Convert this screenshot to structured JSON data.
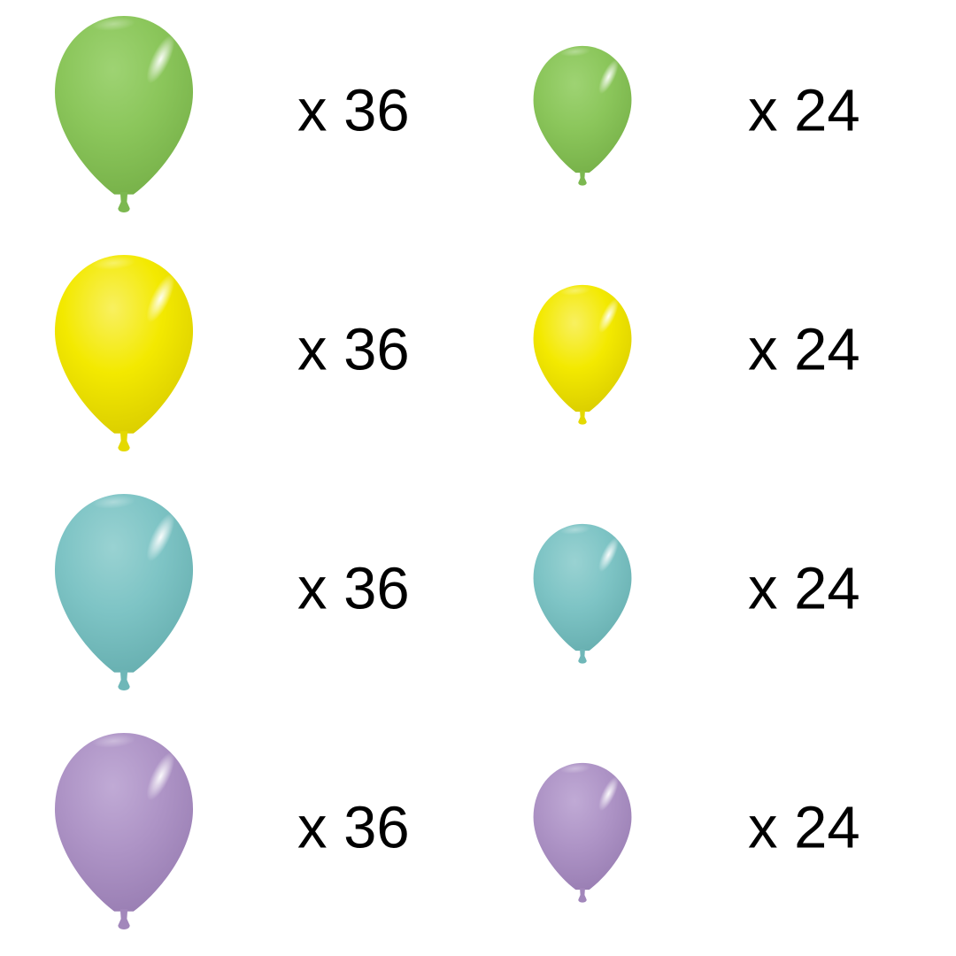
{
  "page": {
    "background": "#ffffff",
    "text_color": "#000000"
  },
  "rows": [
    {
      "color_name": "lime-green",
      "balloon": {
        "body": "#8bc65b",
        "edge": "#76b048",
        "light": "#9ed373",
        "knot": "#7cb850"
      },
      "large_label": "x 36",
      "small_label": "x 24"
    },
    {
      "color_name": "yellow",
      "balloon": {
        "body": "#f3e900",
        "edge": "#d9cc00",
        "light": "#f8f060",
        "knot": "#e4d900"
      },
      "large_label": "x 36",
      "small_label": "x 24"
    },
    {
      "color_name": "aqua-teal",
      "balloon": {
        "body": "#7ec4c5",
        "edge": "#66aeaf",
        "light": "#99d2d2",
        "knot": "#6fb7b8"
      },
      "large_label": "x 36",
      "small_label": "x 24"
    },
    {
      "color_name": "lilac-purple",
      "balloon": {
        "body": "#ae94c6",
        "edge": "#987db2",
        "light": "#c0aad5",
        "knot": "#a287bb"
      },
      "large_label": "x 36",
      "small_label": "x 24"
    }
  ]
}
